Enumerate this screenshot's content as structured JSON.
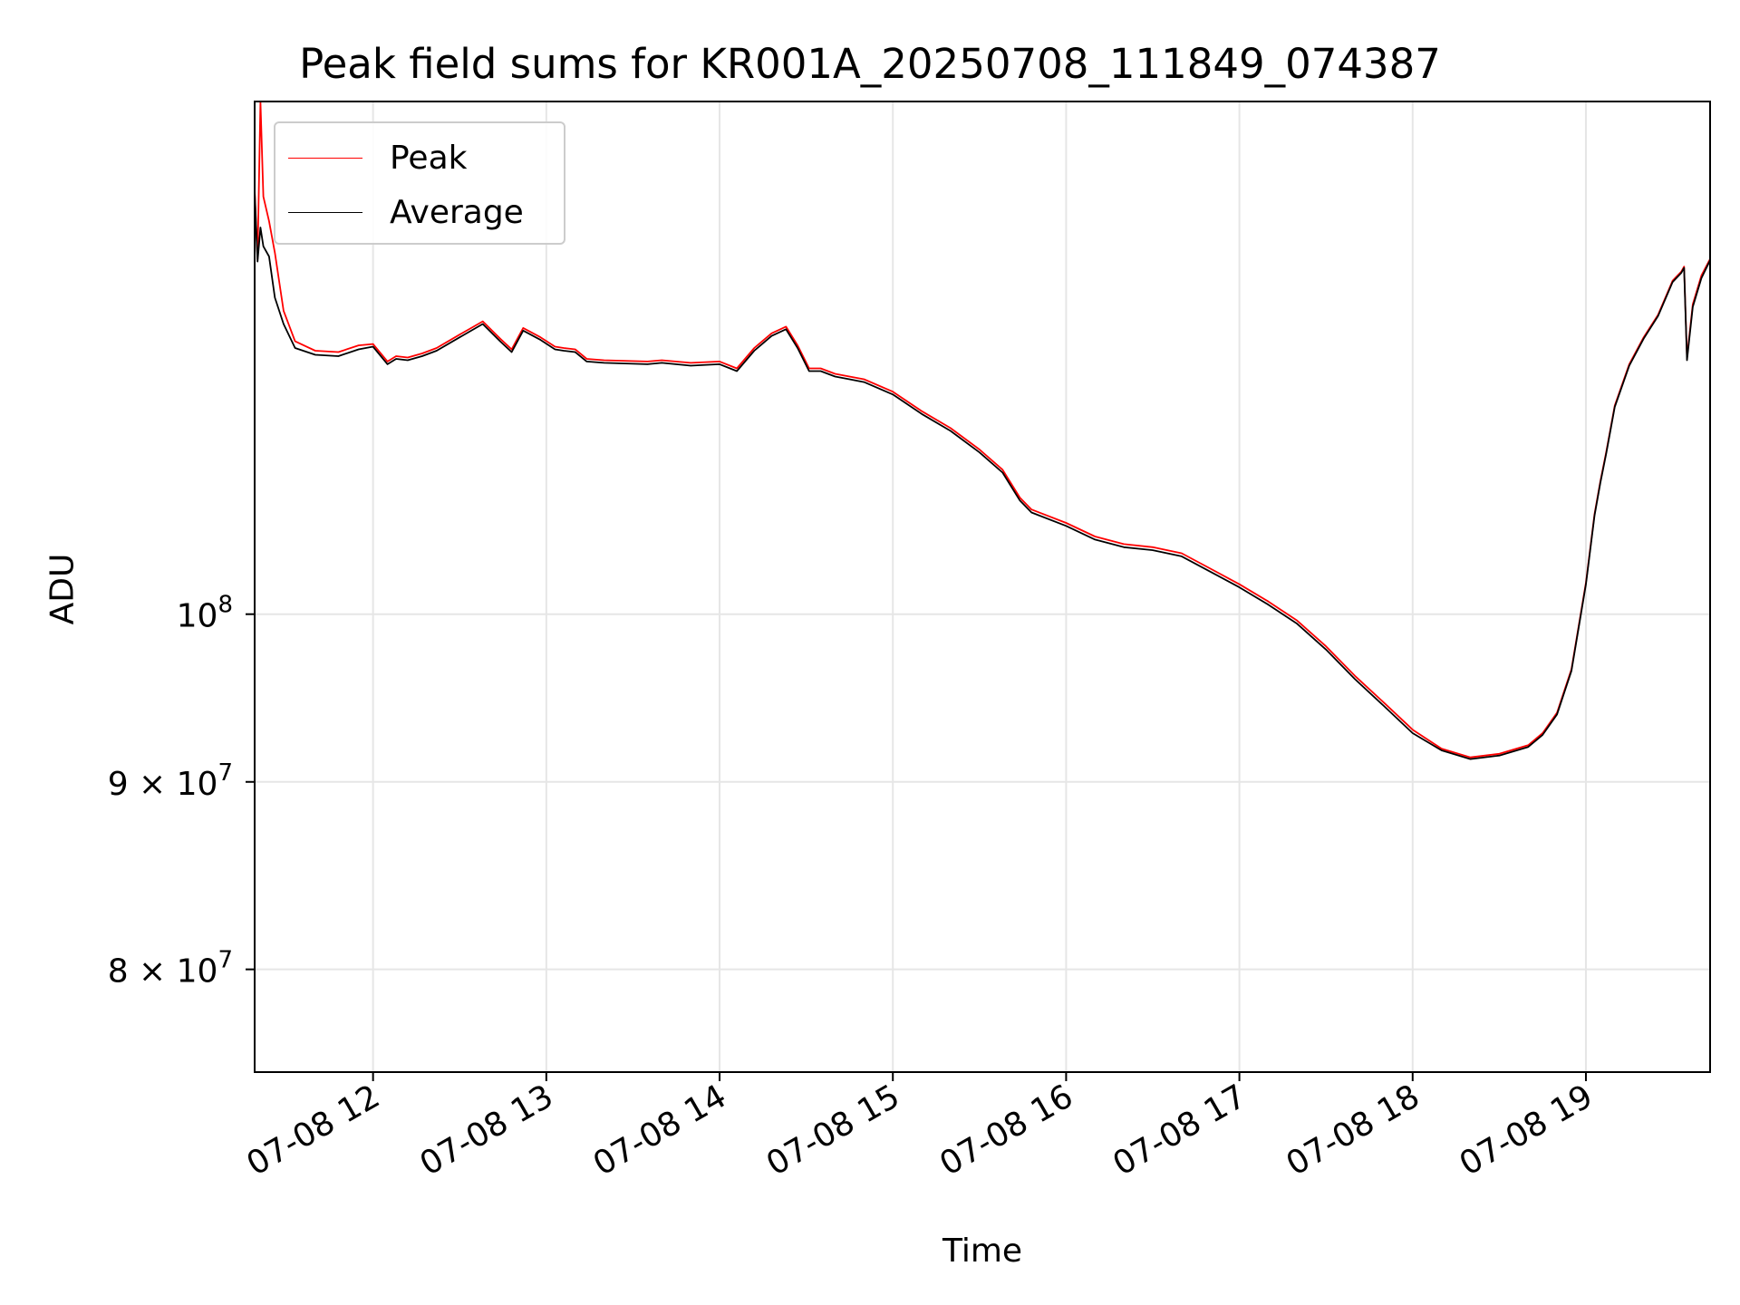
{
  "chart_data": {
    "type": "line",
    "title": "Peak field sums for KR001A_20250708_111849_074387",
    "xlabel": "Time",
    "ylabel": "ADU",
    "x_tick_labels": [
      "07-08 12",
      "07-08 13",
      "07-08 14",
      "07-08 15",
      "07-08 16",
      "07-08 17",
      "07-08 18",
      "07-08 19"
    ],
    "y_tick_labels": {
      "1e8": {
        "base": "10",
        "exp": "8",
        "mantissa": ""
      },
      "9e7": {
        "base": "10",
        "exp": "7",
        "mantissa": "9 × "
      },
      "8e7": {
        "base": "10",
        "exp": "7",
        "mantissa": "8 × "
      }
    },
    "y_scale": "log",
    "x_range": [
      "07-08 11:19",
      "07-08 19:43"
    ],
    "y_range": [
      75000000,
      138000000
    ],
    "grid": true,
    "legend_position": "upper-left",
    "series": [
      {
        "name": "Peak",
        "color": "#ff0000",
        "x": [
          "07-08 11:19",
          "07-08 11:20",
          "07-08 11:21",
          "07-08 11:22",
          "07-08 11:24",
          "07-08 11:26",
          "07-08 11:29",
          "07-08 11:33",
          "07-08 11:40",
          "07-08 11:48",
          "07-08 11:55",
          "07-08 12:00",
          "07-08 12:05",
          "07-08 12:08",
          "07-08 12:12",
          "07-08 12:17",
          "07-08 12:22",
          "07-08 12:30",
          "07-08 12:38",
          "07-08 12:44",
          "07-08 12:48",
          "07-08 12:52",
          "07-08 12:58",
          "07-08 13:03",
          "07-08 13:06",
          "07-08 13:10",
          "07-08 13:14",
          "07-08 13:20",
          "07-08 13:35",
          "07-08 13:40",
          "07-08 13:50",
          "07-08 14:00",
          "07-08 14:06",
          "07-08 14:12",
          "07-08 14:18",
          "07-08 14:23",
          "07-08 14:27",
          "07-08 14:31",
          "07-08 14:35",
          "07-08 14:40",
          "07-08 14:45",
          "07-08 14:50",
          "07-08 15:00",
          "07-08 15:10",
          "07-08 15:20",
          "07-08 15:30",
          "07-08 15:38",
          "07-08 15:44",
          "07-08 15:48",
          "07-08 16:00",
          "07-08 16:10",
          "07-08 16:20",
          "07-08 16:30",
          "07-08 16:40",
          "07-08 16:50",
          "07-08 17:00",
          "07-08 17:10",
          "07-08 17:20",
          "07-08 17:30",
          "07-08 17:40",
          "07-08 17:50",
          "07-08 18:00",
          "07-08 18:10",
          "07-08 18:20",
          "07-08 18:30",
          "07-08 18:40",
          "07-08 18:45",
          "07-08 18:50",
          "07-08 18:55",
          "07-08 19:00",
          "07-08 19:03",
          "07-08 19:05",
          "07-08 19:07",
          "07-08 19:10",
          "07-08 19:15",
          "07-08 19:20",
          "07-08 19:25",
          "07-08 19:30",
          "07-08 19:33",
          "07-08 19:34",
          "07-08 19:35",
          "07-08 19:37",
          "07-08 19:40",
          "07-08 19:43"
        ],
        "y": [
          130600000,
          125000000,
          138000000,
          130000000,
          128000000,
          125500000,
          121000000,
          118700000,
          118000000,
          117900000,
          118400000,
          118500000,
          117200000,
          117600000,
          117500000,
          117800000,
          118200000,
          119200000,
          120200000,
          118900000,
          118100000,
          119700000,
          119000000,
          118300000,
          118200000,
          118100000,
          117400000,
          117300000,
          117200000,
          117300000,
          117100000,
          117200000,
          116700000,
          118200000,
          119300000,
          119800000,
          118400000,
          116700000,
          116700000,
          116300000,
          116100000,
          115900000,
          115000000,
          113600000,
          112400000,
          110900000,
          109500000,
          107600000,
          106800000,
          105900000,
          105000000,
          104500000,
          104300000,
          103900000,
          102900000,
          101900000,
          100800000,
          99600000,
          98000000,
          96200000,
          94600000,
          93000000,
          91900000,
          91400000,
          91600000,
          92100000,
          92800000,
          94000000,
          96600000,
          102000000,
          106500000,
          108700000,
          110700000,
          114000000,
          117000000,
          119000000,
          120700000,
          123300000,
          124000000,
          124400000,
          117500000,
          121500000,
          123700000,
          125000000
        ]
      },
      {
        "name": "Average",
        "color": "#000000",
        "x": [
          "07-08 11:19",
          "07-08 11:20",
          "07-08 11:21",
          "07-08 11:22",
          "07-08 11:24",
          "07-08 11:26",
          "07-08 11:29",
          "07-08 11:33",
          "07-08 11:40",
          "07-08 11:48",
          "07-08 11:55",
          "07-08 12:00",
          "07-08 12:05",
          "07-08 12:08",
          "07-08 12:12",
          "07-08 12:17",
          "07-08 12:22",
          "07-08 12:30",
          "07-08 12:38",
          "07-08 12:44",
          "07-08 12:48",
          "07-08 12:52",
          "07-08 12:58",
          "07-08 13:03",
          "07-08 13:06",
          "07-08 13:10",
          "07-08 13:14",
          "07-08 13:20",
          "07-08 13:35",
          "07-08 13:40",
          "07-08 13:50",
          "07-08 14:00",
          "07-08 14:06",
          "07-08 14:12",
          "07-08 14:18",
          "07-08 14:23",
          "07-08 14:27",
          "07-08 14:31",
          "07-08 14:35",
          "07-08 14:40",
          "07-08 14:45",
          "07-08 14:50",
          "07-08 15:00",
          "07-08 15:10",
          "07-08 15:20",
          "07-08 15:30",
          "07-08 15:38",
          "07-08 15:44",
          "07-08 15:48",
          "07-08 16:00",
          "07-08 16:10",
          "07-08 16:20",
          "07-08 16:30",
          "07-08 16:40",
          "07-08 16:50",
          "07-08 17:00",
          "07-08 17:10",
          "07-08 17:20",
          "07-08 17:30",
          "07-08 17:40",
          "07-08 17:50",
          "07-08 18:00",
          "07-08 18:10",
          "07-08 18:20",
          "07-08 18:30",
          "07-08 18:40",
          "07-08 18:45",
          "07-08 18:50",
          "07-08 18:55",
          "07-08 19:00",
          "07-08 19:03",
          "07-08 19:05",
          "07-08 19:07",
          "07-08 19:10",
          "07-08 19:15",
          "07-08 19:20",
          "07-08 19:25",
          "07-08 19:30",
          "07-08 19:33",
          "07-08 19:34",
          "07-08 19:35",
          "07-08 19:37",
          "07-08 19:40",
          "07-08 19:43"
        ],
        "y": [
          130400000,
          124800000,
          127500000,
          126000000,
          125200000,
          122000000,
          120000000,
          118200000,
          117700000,
          117600000,
          118100000,
          118300000,
          117000000,
          117400000,
          117300000,
          117600000,
          118000000,
          119000000,
          120000000,
          118700000,
          117900000,
          119500000,
          118800000,
          118100000,
          118000000,
          117900000,
          117200000,
          117100000,
          117000000,
          117100000,
          116900000,
          117000000,
          116500000,
          118000000,
          119100000,
          119600000,
          118200000,
          116500000,
          116500000,
          116100000,
          115900000,
          115700000,
          114800000,
          113400000,
          112200000,
          110700000,
          109300000,
          107400000,
          106600000,
          105700000,
          104800000,
          104300000,
          104100000,
          103700000,
          102700000,
          101700000,
          100600000,
          99400000,
          97800000,
          96000000,
          94400000,
          92800000,
          91800000,
          91300000,
          91500000,
          92000000,
          92700000,
          93900000,
          96500000,
          101900000,
          106400000,
          108600000,
          110600000,
          113900000,
          116900000,
          118900000,
          120600000,
          123200000,
          123900000,
          124300000,
          117300000,
          121300000,
          123500000,
          124900000
        ]
      }
    ]
  }
}
